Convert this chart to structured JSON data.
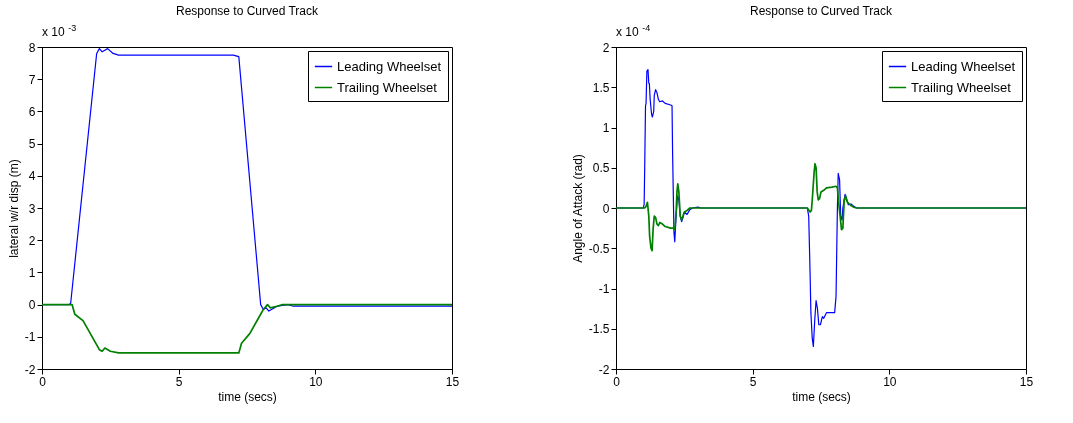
{
  "chart_data": [
    {
      "type": "line",
      "title": "Response to Curved Track",
      "xlabel": "time (secs)",
      "ylabel": "lateral w/r disp (m)",
      "annotations": [
        "x 10$^{-3}$"
      ],
      "xlim": [
        0,
        15
      ],
      "xticks": [
        0,
        5,
        10,
        15
      ],
      "ylim": [
        -2,
        8
      ],
      "yticks": [
        -2,
        -1,
        0,
        1,
        2,
        3,
        4,
        5,
        6,
        7,
        8
      ],
      "grid": false,
      "legend": "top right",
      "line_style": "solid",
      "marker": "none",
      "series": [
        {
          "name": "Leading Wheelset",
          "color": "#0000ff",
          "x": [
            0,
            1,
            1.05,
            2,
            2.1,
            2.2,
            2.3,
            2.4,
            2.6,
            2.8,
            7,
            7.2,
            8,
            8.1,
            8.2,
            8.3,
            8.6,
            9,
            9.2,
            15
          ],
          "values": [
            0,
            0,
            0.05,
            7.8,
            7.95,
            7.85,
            7.9,
            7.95,
            7.8,
            7.75,
            7.75,
            7.7,
            0,
            -0.15,
            -0.1,
            -0.2,
            -0.05,
            0,
            -0.05,
            -0.05
          ]
        },
        {
          "name": "Trailing Wheelset",
          "color": "#008000",
          "x": [
            0,
            1.1,
            1.2,
            1.5,
            2.1,
            2.2,
            2.3,
            2.5,
            2.8,
            7.2,
            7.3,
            7.6,
            8,
            8.1,
            8.25,
            8.35,
            8.6,
            8.8,
            15
          ],
          "values": [
            0,
            0,
            -0.3,
            -0.5,
            -1.4,
            -1.45,
            -1.35,
            -1.45,
            -1.5,
            -1.5,
            -1.2,
            -0.9,
            -0.3,
            -0.15,
            0,
            -0.1,
            -0.05,
            0,
            0
          ]
        }
      ]
    },
    {
      "type": "line",
      "title": "Response to Curved Track",
      "xlabel": "time (secs)",
      "ylabel": "Angle of Attack (rad)",
      "annotations": [
        "x 10$^{-4}$"
      ],
      "xlim": [
        0,
        15
      ],
      "xticks": [
        0,
        5,
        10,
        15
      ],
      "ylim": [
        -2,
        2
      ],
      "yticks": [
        -2,
        -1.5,
        -1,
        -0.5,
        0,
        0.5,
        1,
        1.5,
        2
      ],
      "grid": false,
      "legend": "top right",
      "line_style": "solid",
      "marker": "none",
      "series": [
        {
          "name": "Leading Wheelset",
          "color": "#0000ff",
          "x": [
            0,
            1,
            1.03,
            1.05,
            1.08,
            1.1,
            1.13,
            1.17,
            1.2,
            1.22,
            1.25,
            1.3,
            1.33,
            1.38,
            1.4,
            1.45,
            1.5,
            1.55,
            1.6,
            1.7,
            1.8,
            2,
            2.05,
            2.07,
            2.12,
            2.15,
            2.2,
            2.25,
            2.3,
            2.35,
            2.4,
            2.45,
            2.5,
            2.6,
            2.7,
            2.8,
            3,
            3.1,
            7,
            7.05,
            7.1,
            7.13,
            7.18,
            7.22,
            7.27,
            7.32,
            7.37,
            7.42,
            7.48,
            7.55,
            7.6,
            7.7,
            8,
            8.05,
            8.1,
            8.13,
            8.18,
            8.22,
            8.27,
            8.3,
            8.38,
            8.45,
            8.5,
            8.6,
            8.7,
            8.8,
            15
          ],
          "values": [
            0,
            0,
            0.05,
            0.5,
            1.27,
            1.3,
            1.7,
            1.72,
            1.55,
            1.55,
            1.35,
            1.17,
            1.13,
            1.2,
            1.4,
            1.47,
            1.43,
            1.35,
            1.32,
            1.33,
            1.3,
            1.28,
            1.27,
            0.7,
            -0.3,
            -0.42,
            -0.1,
            0.15,
            0.1,
            -0.1,
            -0.17,
            -0.12,
            -0.05,
            -0.08,
            -0.02,
            0,
            0.01,
            0,
            0,
            -0.1,
            -0.8,
            -1.3,
            -1.62,
            -1.72,
            -1.4,
            -1.15,
            -1.25,
            -1.45,
            -1.45,
            -1.35,
            -1.37,
            -1.3,
            -1.3,
            -1.1,
            0,
            0.43,
            0.35,
            -0.1,
            -0.15,
            0,
            0.17,
            0.1,
            0.04,
            0.05,
            0.02,
            0,
            0
          ]
        },
        {
          "name": "Trailing Wheelset",
          "color": "#008000",
          "x": [
            0,
            1.05,
            1.1,
            1.15,
            1.2,
            1.23,
            1.28,
            1.32,
            1.36,
            1.4,
            1.45,
            1.5,
            1.55,
            1.6,
            1.7,
            1.8,
            2,
            2.1,
            2.15,
            2.2,
            2.23,
            2.26,
            2.3,
            2.35,
            2.4,
            2.45,
            2.5,
            2.6,
            2.7,
            2.8,
            7,
            7.1,
            7.15,
            7.18,
            7.25,
            7.28,
            7.32,
            7.36,
            7.4,
            7.45,
            7.5,
            7.6,
            7.7,
            7.9,
            8.05,
            8.1,
            8.15,
            8.2,
            8.25,
            8.3,
            8.35,
            8.4,
            8.45,
            8.5,
            8.6,
            8.7,
            8.8,
            15
          ],
          "values": [
            0,
            0,
            0.02,
            0.07,
            -0.1,
            -0.35,
            -0.5,
            -0.53,
            -0.25,
            -0.1,
            -0.12,
            -0.2,
            -0.22,
            -0.18,
            -0.2,
            -0.23,
            -0.25,
            -0.25,
            -0.27,
            -0.05,
            0.2,
            0.3,
            0.2,
            -0.1,
            -0.15,
            -0.1,
            -0.05,
            -0.03,
            0,
            0,
            0,
            -0.05,
            -0.03,
            0.1,
            0.45,
            0.55,
            0.5,
            0.2,
            0.1,
            0.12,
            0.2,
            0.22,
            0.25,
            0.26,
            0.27,
            0.25,
            0.05,
            -0.1,
            -0.27,
            -0.25,
            0.1,
            0.15,
            0.08,
            0.06,
            0.03,
            0.01,
            0,
            0
          ]
        }
      ]
    }
  ]
}
